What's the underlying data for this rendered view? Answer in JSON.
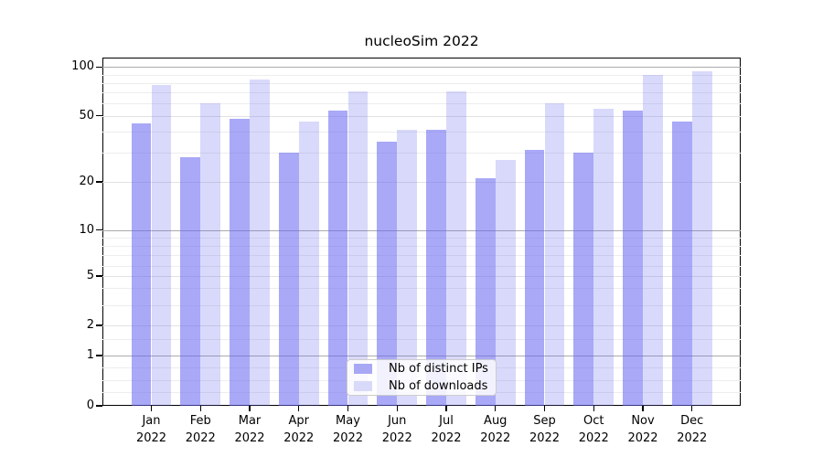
{
  "title": "nucleoSim 2022",
  "chart_data": {
    "type": "bar",
    "title": "nucleoSim 2022",
    "year": "2022",
    "categories": [
      "Jan",
      "Feb",
      "Mar",
      "Apr",
      "May",
      "Jun",
      "Jul",
      "Aug",
      "Sep",
      "Oct",
      "Nov",
      "Dec"
    ],
    "series": [
      {
        "name": "Nb of distinct IPs",
        "color": "#a8a8f5",
        "bar_color": "rgba(98,98,240,0.55)",
        "values": [
          45,
          28,
          48,
          30,
          54,
          35,
          41,
          21,
          31,
          30,
          54,
          46
        ]
      },
      {
        "name": "Nb of downloads",
        "color": "#d9d9fa",
        "bar_color": "rgba(98,98,240,0.24)",
        "values": [
          78,
          60,
          84,
          46,
          71,
          41,
          71,
          27,
          60,
          55,
          90,
          94
        ]
      }
    ],
    "yscale": "symlog",
    "yticks": [
      100,
      50,
      20,
      10,
      5,
      2,
      1,
      0
    ],
    "ylim": [
      0,
      114
    ],
    "grid": true,
    "gridlines": {
      "major": [
        1,
        10,
        100
      ],
      "sub": [
        2,
        5,
        20,
        50
      ],
      "minor": [
        0.25,
        0.5,
        0.75,
        1.5,
        3,
        4,
        6,
        7,
        8,
        9,
        30,
        40,
        60,
        70,
        80,
        90
      ]
    },
    "legend_position": "lower-center"
  },
  "colors": {
    "axis": "#000000",
    "grid_major": "#ababab",
    "grid_sub": "#e2e2e2",
    "grid_minor": "#ededed",
    "legend_border": "#cccccc"
  }
}
